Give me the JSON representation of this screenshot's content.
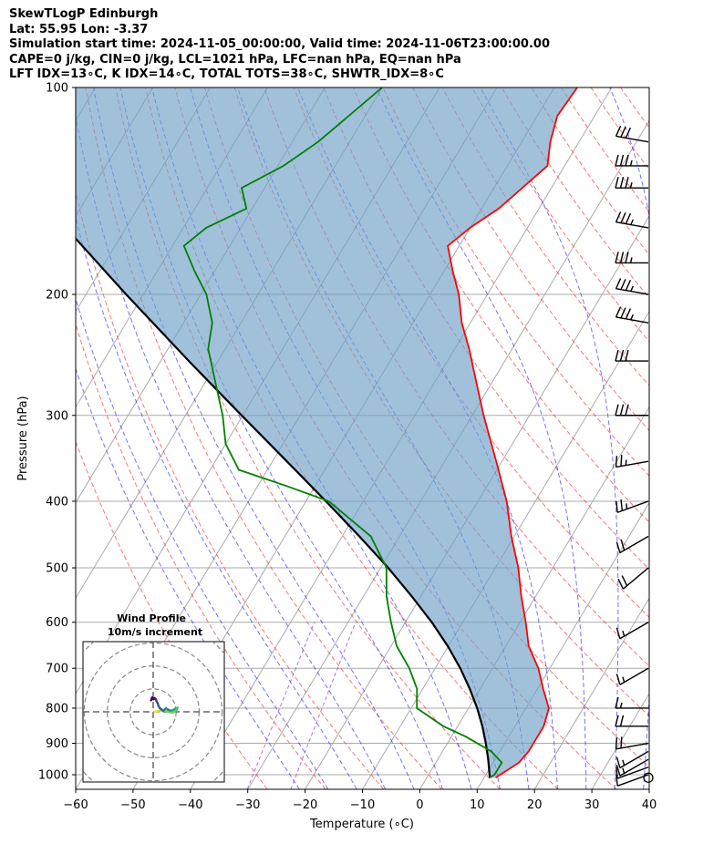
{
  "title_lines": [
    "SkewTLogP Edinburgh",
    "Lat: 55.95   Lon: -3.37",
    "Simulation start time: 2024-11-05_00:00:00, Valid time: 2024-11-06T23:00:00.00",
    "CAPE=0 j/kg, CIN=0 j/kg, LCL=1021 hPa, LFC=nan hPa, EQ=nan hPa",
    "LFT IDX=13∘C, K IDX=14∘C, TOTAL TOTS=38∘C, SHWTR_IDX=8∘C"
  ],
  "chart_data": {
    "type": "line",
    "skew": "skew-T log-p",
    "xlabel": "Temperature (∘C)",
    "ylabel": "Pressure (hPa)",
    "xlim": [
      -60,
      40
    ],
    "ylim": [
      1050,
      100
    ],
    "y_scale": "log",
    "x_ticks": [
      "−60",
      "−50",
      "−40",
      "−30",
      "−20",
      "−10",
      "0",
      "10",
      "20",
      "30",
      "40"
    ],
    "y_ticks": [
      "100",
      "200",
      "300",
      "400",
      "500",
      "600",
      "700",
      "800",
      "900",
      "1000"
    ],
    "grid": true,
    "temperature": {
      "color": "#ff0000",
      "p": [
        1010,
        1000,
        960,
        925,
        880,
        850,
        800,
        750,
        700,
        650,
        600,
        550,
        500,
        450,
        400,
        350,
        300,
        270,
        240,
        220,
        200,
        185,
        170,
        160,
        150,
        130,
        120,
        110,
        100
      ],
      "t": [
        12,
        12.5,
        14.5,
        15,
        15,
        15,
        14,
        11,
        8,
        4,
        1,
        -2.5,
        -6,
        -10.5,
        -15,
        -21,
        -28,
        -32.5,
        -37.5,
        -41.5,
        -45,
        -48.5,
        -52,
        -50,
        -47,
        -43,
        -45,
        -46.5,
        -46
      ]
    },
    "dewpoint": {
      "color": "#008000",
      "p": [
        1010,
        1000,
        960,
        925,
        880,
        850,
        800,
        750,
        700,
        650,
        600,
        550,
        500,
        450,
        400,
        380,
        360,
        330,
        300,
        270,
        240,
        220,
        200,
        185,
        170,
        160,
        150,
        140,
        130,
        120,
        100
      ],
      "t": [
        11,
        11.5,
        11.5,
        8.5,
        2.5,
        -2.5,
        -9,
        -11,
        -14.5,
        -19,
        -22.5,
        -26,
        -29,
        -35,
        -46,
        -55,
        -65,
        -70,
        -73.5,
        -78,
        -83,
        -85,
        -89,
        -93.5,
        -98,
        -96,
        -91,
        -94,
        -89,
        -85.5,
        -80
      ]
    },
    "parcel": {
      "color": "#000000",
      "p": [
        1010,
        950,
        900,
        850,
        800,
        750,
        700,
        650,
        600,
        550,
        500,
        450,
        400,
        350,
        300,
        250,
        200,
        150,
        100
      ],
      "t": [
        11,
        8.8,
        6.7,
        4.3,
        1.5,
        -1.8,
        -5.6,
        -10.1,
        -15.4,
        -21.6,
        -28.7,
        -37,
        -46.5,
        -57.5,
        -70.2,
        -85.1,
        -103,
        -125.5,
        -156.5
      ]
    },
    "wind_barbs": [
      {
        "p": 1000,
        "dir": 250,
        "speed_kt": 9
      },
      {
        "p": 975,
        "dir": 250,
        "speed_kt": 12
      },
      {
        "p": 950,
        "dir": 240,
        "speed_kt": 14
      },
      {
        "p": 925,
        "dir": 240,
        "speed_kt": 17
      },
      {
        "p": 900,
        "dir": 260,
        "speed_kt": 19
      },
      {
        "p": 850,
        "dir": 270,
        "speed_kt": 19
      },
      {
        "p": 800,
        "dir": 270,
        "speed_kt": 17
      },
      {
        "p": 700,
        "dir": 240,
        "speed_kt": 17
      },
      {
        "p": 600,
        "dir": 240,
        "speed_kt": 17
      },
      {
        "p": 500,
        "dir": 230,
        "speed_kt": 19
      },
      {
        "p": 450,
        "dir": 240,
        "speed_kt": 22
      },
      {
        "p": 400,
        "dir": 250,
        "speed_kt": 24
      },
      {
        "p": 350,
        "dir": 260,
        "speed_kt": 27
      },
      {
        "p": 300,
        "dir": 270,
        "speed_kt": 29
      },
      {
        "p": 250,
        "dir": 270,
        "speed_kt": 32
      },
      {
        "p": 220,
        "dir": 280,
        "speed_kt": 34
      },
      {
        "p": 200,
        "dir": 280,
        "speed_kt": 34
      },
      {
        "p": 180,
        "dir": 270,
        "speed_kt": 37
      },
      {
        "p": 160,
        "dir": 280,
        "speed_kt": 34
      },
      {
        "p": 140,
        "dir": 270,
        "speed_kt": 34
      },
      {
        "p": 130,
        "dir": 270,
        "speed_kt": 34
      },
      {
        "p": 120,
        "dir": 280,
        "speed_kt": 29
      }
    ],
    "hodograph": {
      "title": "Wind Profile",
      "subtitle": "10m/s increment",
      "ring_step_ms": 10,
      "rings": 4,
      "u": [
        0.6,
        1.3,
        2.5,
        4.1,
        6.0,
        7.5,
        9.0,
        10.2,
        10.6,
        9.4,
        8.8,
        7.6,
        6.6,
        5.6,
        4.8,
        4.4,
        3.6,
        2.8,
        2.3,
        2.0,
        1.5,
        1.1,
        0.6,
        0.2,
        -0.5,
        -0.9
      ],
      "v": [
        -0.1,
        0.3,
        0.4,
        0.6,
        0.4,
        -0.3,
        -0.2,
        0.9,
        1.8,
        1.3,
        0.8,
        0.5,
        0.9,
        1.6,
        0.8,
        0.3,
        1.1,
        1.7,
        2.6,
        3.6,
        4.6,
        5.6,
        6.0,
        5.5,
        6.2,
        5.0
      ]
    }
  }
}
